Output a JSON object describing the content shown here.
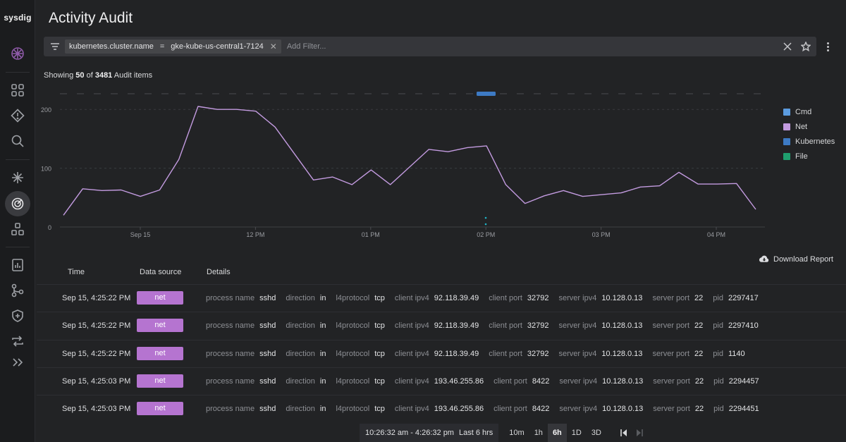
{
  "app": {
    "logo": "sysdig",
    "page_title": "Activity Audit",
    "nav_icons": [
      "brand-icon",
      "dashboards-icon",
      "alert-icon",
      "search-icon",
      "integrations-icon",
      "activity-audit-icon",
      "topology-icon",
      "reports-icon",
      "workflow-icon",
      "shield-icon",
      "sync-icon",
      "expand-icon"
    ]
  },
  "filter": {
    "chip_key": "kubernetes.cluster.name",
    "chip_op": "=",
    "chip_value": "gke-kube-us-central1-7124",
    "placeholder": "Add Filter..."
  },
  "summary": {
    "prefix": "Showing",
    "shown": "50",
    "of": "of",
    "total": "3481",
    "suffix": "Audit items"
  },
  "chart_data": {
    "type": "line",
    "x_tick_labels": [
      "Sep 15",
      "12 PM",
      "01 PM",
      "02 PM",
      "03 PM",
      "04 PM"
    ],
    "y_tick_labels": [
      "200",
      "100",
      "0"
    ],
    "ylim": [
      0,
      235
    ],
    "grid": true,
    "legend_placement": "right",
    "series": [
      {
        "name": "Cmd",
        "color": "#5b9bdf",
        "values": []
      },
      {
        "name": "Net",
        "color": "#c39be0",
        "values": [
          20,
          65,
          62,
          63,
          52,
          63,
          115,
          205,
          200,
          200,
          197,
          170,
          125,
          80,
          85,
          72,
          97,
          72,
          102,
          132,
          128,
          135,
          138,
          72,
          40,
          53,
          62,
          52,
          55,
          58,
          68,
          70,
          93,
          73,
          73,
          74,
          30
        ]
      },
      {
        "name": "Kubernetes",
        "color": "#3d7ac4",
        "values": []
      },
      {
        "name": "File",
        "color": "#1f9e6e",
        "values": []
      }
    ]
  },
  "download_label": "Download Report",
  "table": {
    "headers": [
      "Time",
      "Data source",
      "Details"
    ],
    "rows": [
      {
        "time": "Sep 15, 4:25:22 PM",
        "source": "net",
        "details": [
          [
            "process name",
            "sshd"
          ],
          [
            "direction",
            "in"
          ],
          [
            "l4protocol",
            "tcp"
          ],
          [
            "client ipv4",
            "92.118.39.49"
          ],
          [
            "client port",
            "32792"
          ],
          [
            "server ipv4",
            "10.128.0.13"
          ],
          [
            "server port",
            "22"
          ],
          [
            "pid",
            "2297417"
          ]
        ]
      },
      {
        "time": "Sep 15, 4:25:22 PM",
        "source": "net",
        "details": [
          [
            "process name",
            "sshd"
          ],
          [
            "direction",
            "in"
          ],
          [
            "l4protocol",
            "tcp"
          ],
          [
            "client ipv4",
            "92.118.39.49"
          ],
          [
            "client port",
            "32792"
          ],
          [
            "server ipv4",
            "10.128.0.13"
          ],
          [
            "server port",
            "22"
          ],
          [
            "pid",
            "2297410"
          ]
        ]
      },
      {
        "time": "Sep 15, 4:25:22 PM",
        "source": "net",
        "details": [
          [
            "process name",
            "sshd"
          ],
          [
            "direction",
            "in"
          ],
          [
            "l4protocol",
            "tcp"
          ],
          [
            "client ipv4",
            "92.118.39.49"
          ],
          [
            "client port",
            "32792"
          ],
          [
            "server ipv4",
            "10.128.0.13"
          ],
          [
            "server port",
            "22"
          ],
          [
            "pid",
            "1140"
          ]
        ]
      },
      {
        "time": "Sep 15, 4:25:03 PM",
        "source": "net",
        "details": [
          [
            "process name",
            "sshd"
          ],
          [
            "direction",
            "in"
          ],
          [
            "l4protocol",
            "tcp"
          ],
          [
            "client ipv4",
            "193.46.255.86"
          ],
          [
            "client port",
            "8422"
          ],
          [
            "server ipv4",
            "10.128.0.13"
          ],
          [
            "server port",
            "22"
          ],
          [
            "pid",
            "2294457"
          ]
        ]
      },
      {
        "time": "Sep 15, 4:25:03 PM",
        "source": "net",
        "details": [
          [
            "process name",
            "sshd"
          ],
          [
            "direction",
            "in"
          ],
          [
            "l4protocol",
            "tcp"
          ],
          [
            "client ipv4",
            "193.46.255.86"
          ],
          [
            "client port",
            "8422"
          ],
          [
            "server ipv4",
            "10.128.0.13"
          ],
          [
            "server port",
            "22"
          ],
          [
            "pid",
            "2294451"
          ]
        ]
      }
    ]
  },
  "timebar": {
    "range": "10:26:32 am - 4:26:32 pm",
    "range_label": "Last 6 hrs",
    "buttons": [
      "10m",
      "1h",
      "6h",
      "1D",
      "3D"
    ],
    "active": "6h"
  }
}
